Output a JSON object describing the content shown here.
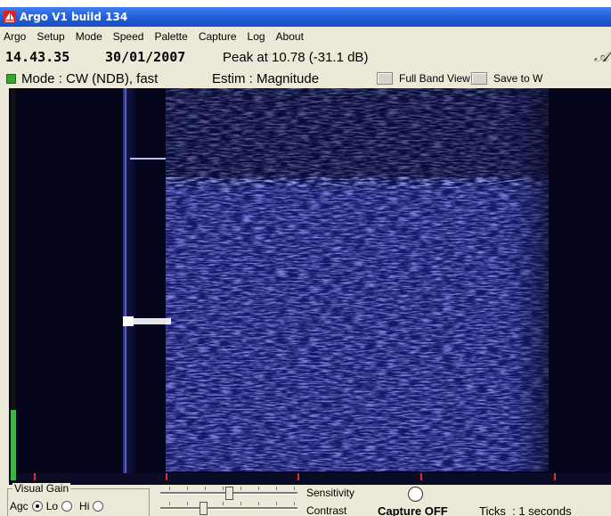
{
  "window": {
    "title": "Argo V1 build 134"
  },
  "menu": [
    "Argo",
    "Setup",
    "Mode",
    "Speed",
    "Palette",
    "Capture",
    "Log",
    "About"
  ],
  "info": {
    "time": "14.43.35",
    "date": "30/01/2007",
    "peak": "Peak at  10.78 (-31.1 dB)"
  },
  "mode_bar": {
    "mode": "Mode : CW (NDB), fast",
    "estim": "Estim : Magnitude",
    "full_band_label": "Full Band View",
    "save_label": "Save to W"
  },
  "level_meter": {
    "fill_fraction": 0.18
  },
  "bottom": {
    "visual_gain_title": "Visual Gain",
    "agc_label": "Agc",
    "lo_label": "Lo",
    "hi_label": "Hi",
    "agc_selected": true,
    "sensitivity_label": "Sensitivity",
    "contrast_label": "Contrast",
    "sensitivity_value": 0.5,
    "contrast_value": 0.3,
    "capture_status": "Capture OFF",
    "ticks_label": "Ticks",
    "ticks_value": ": 1 seconds"
  },
  "colors": {
    "title_blue": "#1e5bd8",
    "spectrogram_bg": "#05061a",
    "signal": "#8a90ee",
    "tick_red": "#e03030"
  },
  "icons": [
    "app-sailboat-icon",
    "full-band-button",
    "save-button",
    "status-led-icon",
    "capture-button"
  ]
}
